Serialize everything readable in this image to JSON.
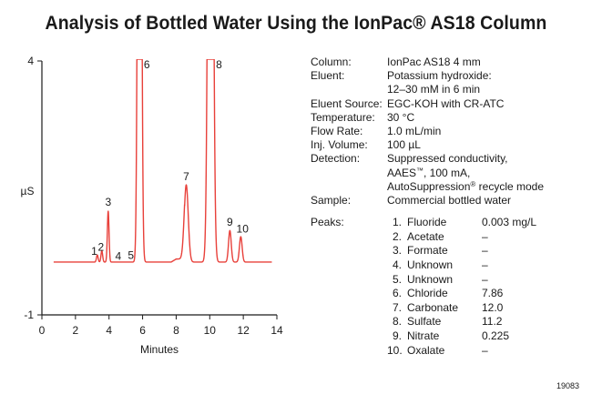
{
  "title": "Analysis of Bottled Water Using the IonPac® AS18 Column",
  "figure_id": "19083",
  "chart_data": {
    "type": "line",
    "title": "Analysis of Bottled Water Using the IonPac® AS18 Column",
    "xlabel": "Minutes",
    "ylabel": "µS",
    "xlim": [
      0,
      14
    ],
    "ylim": [
      -1,
      4
    ],
    "x_ticks": [
      "0",
      "2",
      "4",
      "6",
      "8",
      "10",
      "12",
      "14"
    ],
    "y_ticks": [
      "4",
      "-1"
    ],
    "grid": false,
    "baseline": 0.04,
    "peaks": [
      {
        "label": "1",
        "time": 3.3,
        "height": 0.14,
        "width": 0.05,
        "label_time": 3.12,
        "label_value": 0.18
      },
      {
        "label": "2",
        "time": 3.57,
        "height": 0.22,
        "width": 0.05,
        "label_time": 3.52,
        "label_value": 0.26
      },
      {
        "label": "3",
        "time": 3.95,
        "height": 1.0,
        "width": 0.05,
        "label_time": 3.95,
        "label_value": 1.15
      },
      {
        "label": "4",
        "time": 4.6,
        "height": 0.0,
        "width": 0.05,
        "label_time": 4.55,
        "label_value": 0.08
      },
      {
        "label": "5",
        "time": 5.3,
        "height": 0.0,
        "width": 0.05,
        "label_time": 5.3,
        "label_value": 0.1
      },
      {
        "label": "6",
        "time": 5.82,
        "height": 20,
        "width": 0.09,
        "label_time": 6.25,
        "label_value": 3.86
      },
      {
        "label": "7",
        "time": 8.6,
        "height": 1.52,
        "width": 0.12,
        "label_time": 8.6,
        "label_value": 1.65
      },
      {
        "label": "8",
        "time": 10.05,
        "height": 20,
        "width": 0.12,
        "label_time": 10.55,
        "label_value": 3.86
      },
      {
        "label": "9",
        "time": 11.2,
        "height": 0.62,
        "width": 0.08,
        "label_time": 11.2,
        "label_value": 0.76
      },
      {
        "label": "10",
        "time": 11.85,
        "height": 0.5,
        "width": 0.08,
        "label_time": 11.95,
        "label_value": 0.62
      }
    ]
  },
  "conditions": [
    {
      "label": "Column:",
      "lines": [
        "IonPac AS18 4 mm"
      ]
    },
    {
      "label": "Eluent:",
      "lines": [
        "Potassium hydroxide:",
        "12–30 mM in 6 min"
      ]
    },
    {
      "label": "Eluent Source:",
      "lines": [
        "EGC-KOH with CR-ATC"
      ]
    },
    {
      "label": "Temperature:",
      "lines": [
        "30 °C"
      ]
    },
    {
      "label": "Flow Rate:",
      "lines": [
        "1.0 mL/min"
      ]
    },
    {
      "label": "Inj. Volume:",
      "lines": [
        "100 µL"
      ]
    },
    {
      "label": "Detection:",
      "lines": [
        "Suppressed conductivity,",
        "AAES™, 100 mA,",
        "AutoSuppression® recycle mode"
      ]
    },
    {
      "label": "Sample:",
      "lines": [
        "Commercial bottled water"
      ]
    }
  ],
  "peaks_label": "Peaks:",
  "peak_table": [
    {
      "num": "1.",
      "name": "Fluoride",
      "conc": "0.003 mg/L"
    },
    {
      "num": "2.",
      "name": "Acetate",
      "conc": "–"
    },
    {
      "num": "3.",
      "name": "Formate",
      "conc": "–"
    },
    {
      "num": "4.",
      "name": "Unknown",
      "conc": "–"
    },
    {
      "num": "5.",
      "name": "Unknown",
      "conc": "–"
    },
    {
      "num": "6.",
      "name": "Chloride",
      "conc": "7.86"
    },
    {
      "num": "7.",
      "name": "Carbonate",
      "conc": "12.0"
    },
    {
      "num": "8.",
      "name": "Sulfate",
      "conc": "11.2"
    },
    {
      "num": "9.",
      "name": "Nitrate",
      "conc": "0.225"
    },
    {
      "num": "10.",
      "name": "Oxalate",
      "conc": "–"
    }
  ],
  "colors": {
    "trace": "#e8403a",
    "axis": "#1a1a1a"
  }
}
